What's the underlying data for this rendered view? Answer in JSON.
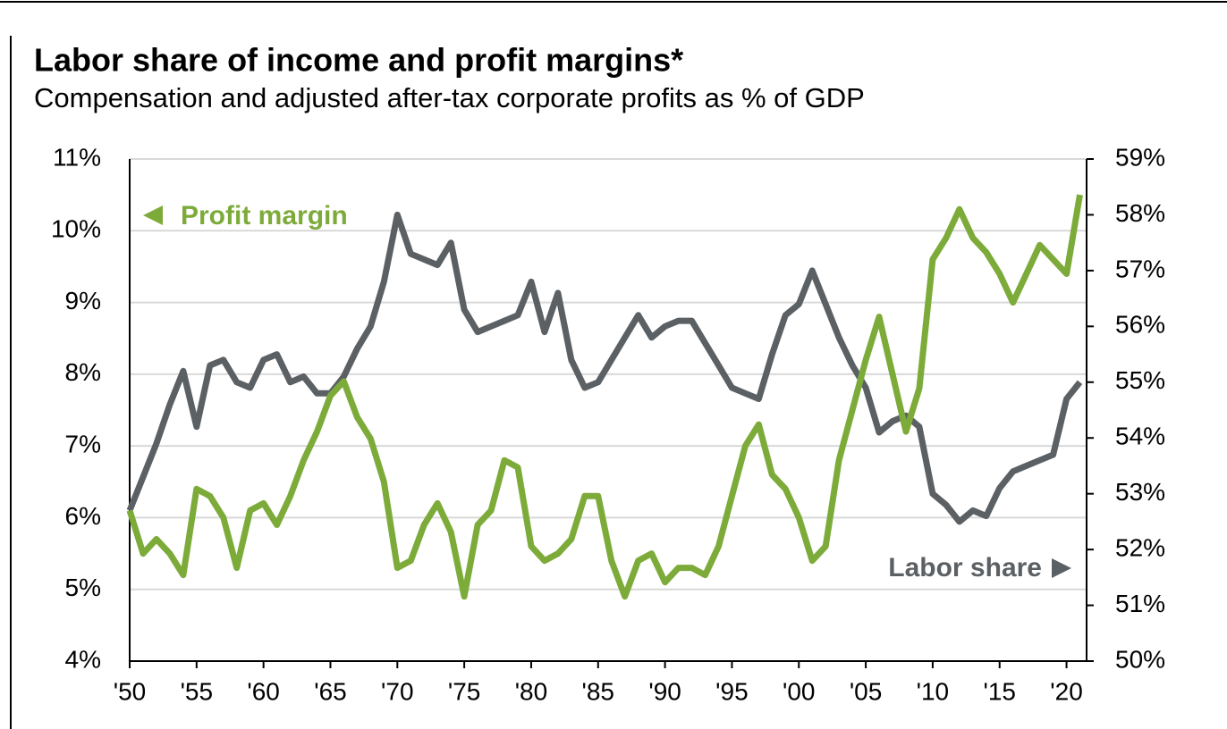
{
  "chart_data": {
    "type": "line",
    "title": "Labor share of income and profit margins*",
    "subtitle": "Compensation and adjusted after-tax corporate profits as % of GDP",
    "x": [
      1950,
      1951,
      1952,
      1953,
      1954,
      1955,
      1956,
      1957,
      1958,
      1959,
      1960,
      1961,
      1962,
      1963,
      1964,
      1965,
      1966,
      1967,
      1968,
      1969,
      1970,
      1971,
      1972,
      1973,
      1974,
      1975,
      1976,
      1977,
      1978,
      1979,
      1980,
      1981,
      1982,
      1983,
      1984,
      1985,
      1986,
      1987,
      1988,
      1989,
      1990,
      1991,
      1992,
      1993,
      1994,
      1995,
      1996,
      1997,
      1998,
      1999,
      2000,
      2001,
      2002,
      2003,
      2004,
      2005,
      2006,
      2007,
      2008,
      2009,
      2010,
      2011,
      2012,
      2013,
      2014,
      2015,
      2016,
      2017,
      2018,
      2019,
      2020,
      2021
    ],
    "series": [
      {
        "name": "Profit margin",
        "color": "#7dab3a",
        "axis": "y",
        "values": [
          6.1,
          5.5,
          5.7,
          5.5,
          5.2,
          6.4,
          6.3,
          6.0,
          5.3,
          6.1,
          6.2,
          5.9,
          6.3,
          6.8,
          7.2,
          7.7,
          7.9,
          7.4,
          7.1,
          6.5,
          5.3,
          5.4,
          5.9,
          6.2,
          5.8,
          4.9,
          5.9,
          6.1,
          6.8,
          6.7,
          5.6,
          5.4,
          5.5,
          5.7,
          6.3,
          6.3,
          5.4,
          4.9,
          5.4,
          5.5,
          5.1,
          5.3,
          5.3,
          5.2,
          5.6,
          6.3,
          7.0,
          7.3,
          6.6,
          6.4,
          6.0,
          5.4,
          5.6,
          6.8,
          7.5,
          8.2,
          8.8,
          8.0,
          7.2,
          7.8,
          9.6,
          9.9,
          10.3,
          9.9,
          9.7,
          9.4,
          9.0,
          9.4,
          9.8,
          9.6,
          9.4,
          10.5
        ]
      },
      {
        "name": "Labor share",
        "color": "#5b6064",
        "axis": "y2",
        "values": [
          52.7,
          53.3,
          53.9,
          54.6,
          55.2,
          54.2,
          55.3,
          55.4,
          55.0,
          54.9,
          55.4,
          55.5,
          55.0,
          55.1,
          54.8,
          54.8,
          55.1,
          55.6,
          56.0,
          56.8,
          58.0,
          57.3,
          57.2,
          57.1,
          57.5,
          56.3,
          55.9,
          56.0,
          56.1,
          56.2,
          56.8,
          55.9,
          56.6,
          55.4,
          54.9,
          55.0,
          55.4,
          55.8,
          56.2,
          55.8,
          56.0,
          56.1,
          56.1,
          55.7,
          55.3,
          54.9,
          54.8,
          54.7,
          55.5,
          56.2,
          56.4,
          57.0,
          56.4,
          55.8,
          55.3,
          54.9,
          54.1,
          54.3,
          54.4,
          54.2,
          53.0,
          52.8,
          52.5,
          52.7,
          52.6,
          53.1,
          53.4,
          53.5,
          53.6,
          53.7,
          54.7,
          55.0
        ]
      }
    ],
    "xlim": [
      1950,
      2021.5
    ],
    "xticks": [
      {
        "value": 1950,
        "label": "'50"
      },
      {
        "value": 1955,
        "label": "'55"
      },
      {
        "value": 1960,
        "label": "'60"
      },
      {
        "value": 1965,
        "label": "'65"
      },
      {
        "value": 1970,
        "label": "'70"
      },
      {
        "value": 1975,
        "label": "'75"
      },
      {
        "value": 1980,
        "label": "'80"
      },
      {
        "value": 1985,
        "label": "'85"
      },
      {
        "value": 1990,
        "label": "'90"
      },
      {
        "value": 1995,
        "label": "'95"
      },
      {
        "value": 2000,
        "label": "'00"
      },
      {
        "value": 2005,
        "label": "'05"
      },
      {
        "value": 2010,
        "label": "'10"
      },
      {
        "value": 2015,
        "label": "'15"
      },
      {
        "value": 2020,
        "label": "'20"
      }
    ],
    "ylim": [
      4,
      11
    ],
    "yticks": [
      {
        "value": 4,
        "label": "4%"
      },
      {
        "value": 5,
        "label": "5%"
      },
      {
        "value": 6,
        "label": "6%"
      },
      {
        "value": 7,
        "label": "7%"
      },
      {
        "value": 8,
        "label": "8%"
      },
      {
        "value": 9,
        "label": "9%"
      },
      {
        "value": 10,
        "label": "10%"
      },
      {
        "value": 11,
        "label": "11%"
      }
    ],
    "y2lim": [
      50,
      59
    ],
    "y2ticks": [
      {
        "value": 50,
        "label": "50%"
      },
      {
        "value": 51,
        "label": "51%"
      },
      {
        "value": 52,
        "label": "52%"
      },
      {
        "value": 53,
        "label": "53%"
      },
      {
        "value": 54,
        "label": "54%"
      },
      {
        "value": 55,
        "label": "55%"
      },
      {
        "value": 56,
        "label": "56%"
      },
      {
        "value": 57,
        "label": "57%"
      },
      {
        "value": 58,
        "label": "58%"
      },
      {
        "value": 59,
        "label": "59%"
      }
    ],
    "grid": true
  }
}
